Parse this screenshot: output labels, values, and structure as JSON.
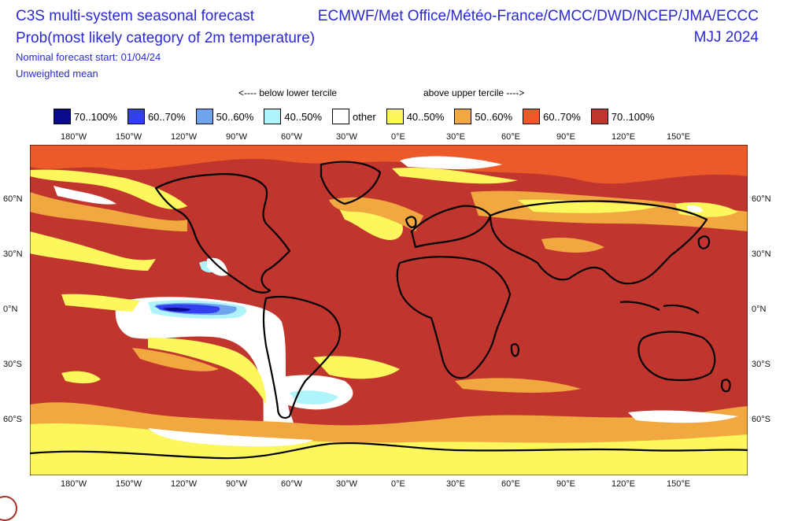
{
  "header": {
    "title_line1": "C3S multi-system seasonal forecast",
    "title_line2": "Prob(most likely category of 2m temperature)",
    "forecast_start": "Nominal forecast start: 01/04/24",
    "mean_type": "Unweighted mean",
    "centres": "ECMWF/Met Office/Météo-France/CMCC/DWD/NCEP/JMA/ECCC",
    "season": "MJJ 2024"
  },
  "tercile_labels": {
    "below": "<---- below lower tercile",
    "above": "above upper tercile ---->"
  },
  "legend": [
    {
      "label": "70..100%",
      "color": "#0a0a8c"
    },
    {
      "label": "60..70%",
      "color": "#3340f0"
    },
    {
      "label": "50..60%",
      "color": "#6fa3ee"
    },
    {
      "label": "40..50%",
      "color": "#aef4fa"
    },
    {
      "label": "other",
      "color": "#ffffff"
    },
    {
      "label": "40..50%",
      "color": "#fbf75c"
    },
    {
      "label": "50..60%",
      "color": "#f2a840"
    },
    {
      "label": "60..70%",
      "color": "#ec5a2a"
    },
    {
      "label": "70..100%",
      "color": "#c0362f"
    }
  ],
  "lon_ticks": [
    "180°W",
    "150°W",
    "120°W",
    "90°W",
    "60°W",
    "30°W",
    "0°E",
    "30°E",
    "60°E",
    "90°E",
    "120°E",
    "150°E"
  ],
  "lat_ticks": [
    "60°N",
    "30°N",
    "0°N",
    "30°S",
    "60°S"
  ]
}
